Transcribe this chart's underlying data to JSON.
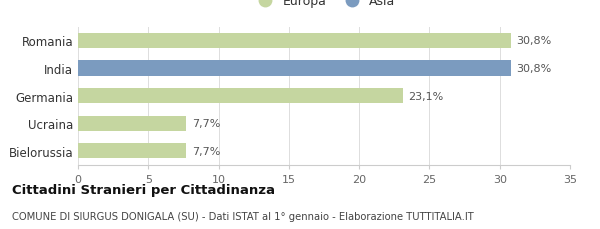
{
  "categories": [
    "Romania",
    "India",
    "Germania",
    "Ucraina",
    "Bielorussia"
  ],
  "values": [
    30.8,
    30.8,
    23.1,
    7.7,
    7.7
  ],
  "colors": [
    "#c5d6a0",
    "#7b9bbf",
    "#c5d6a0",
    "#c5d6a0",
    "#c5d6a0"
  ],
  "labels": [
    "30,8%",
    "30,8%",
    "23,1%",
    "7,7%",
    "7,7%"
  ],
  "legend_labels": [
    "Europa",
    "Asia"
  ],
  "legend_colors": [
    "#c5d6a0",
    "#7b9bbf"
  ],
  "xlim": [
    0,
    35
  ],
  "xticks": [
    0,
    5,
    10,
    15,
    20,
    25,
    30,
    35
  ],
  "title": "Cittadini Stranieri per Cittadinanza",
  "subtitle": "COMUNE DI SIURGUS DONIGALA (SU) - Dati ISTAT al 1° gennaio - Elaborazione TUTTITALIA.IT",
  "background_color": "#ffffff",
  "bar_height": 0.55
}
